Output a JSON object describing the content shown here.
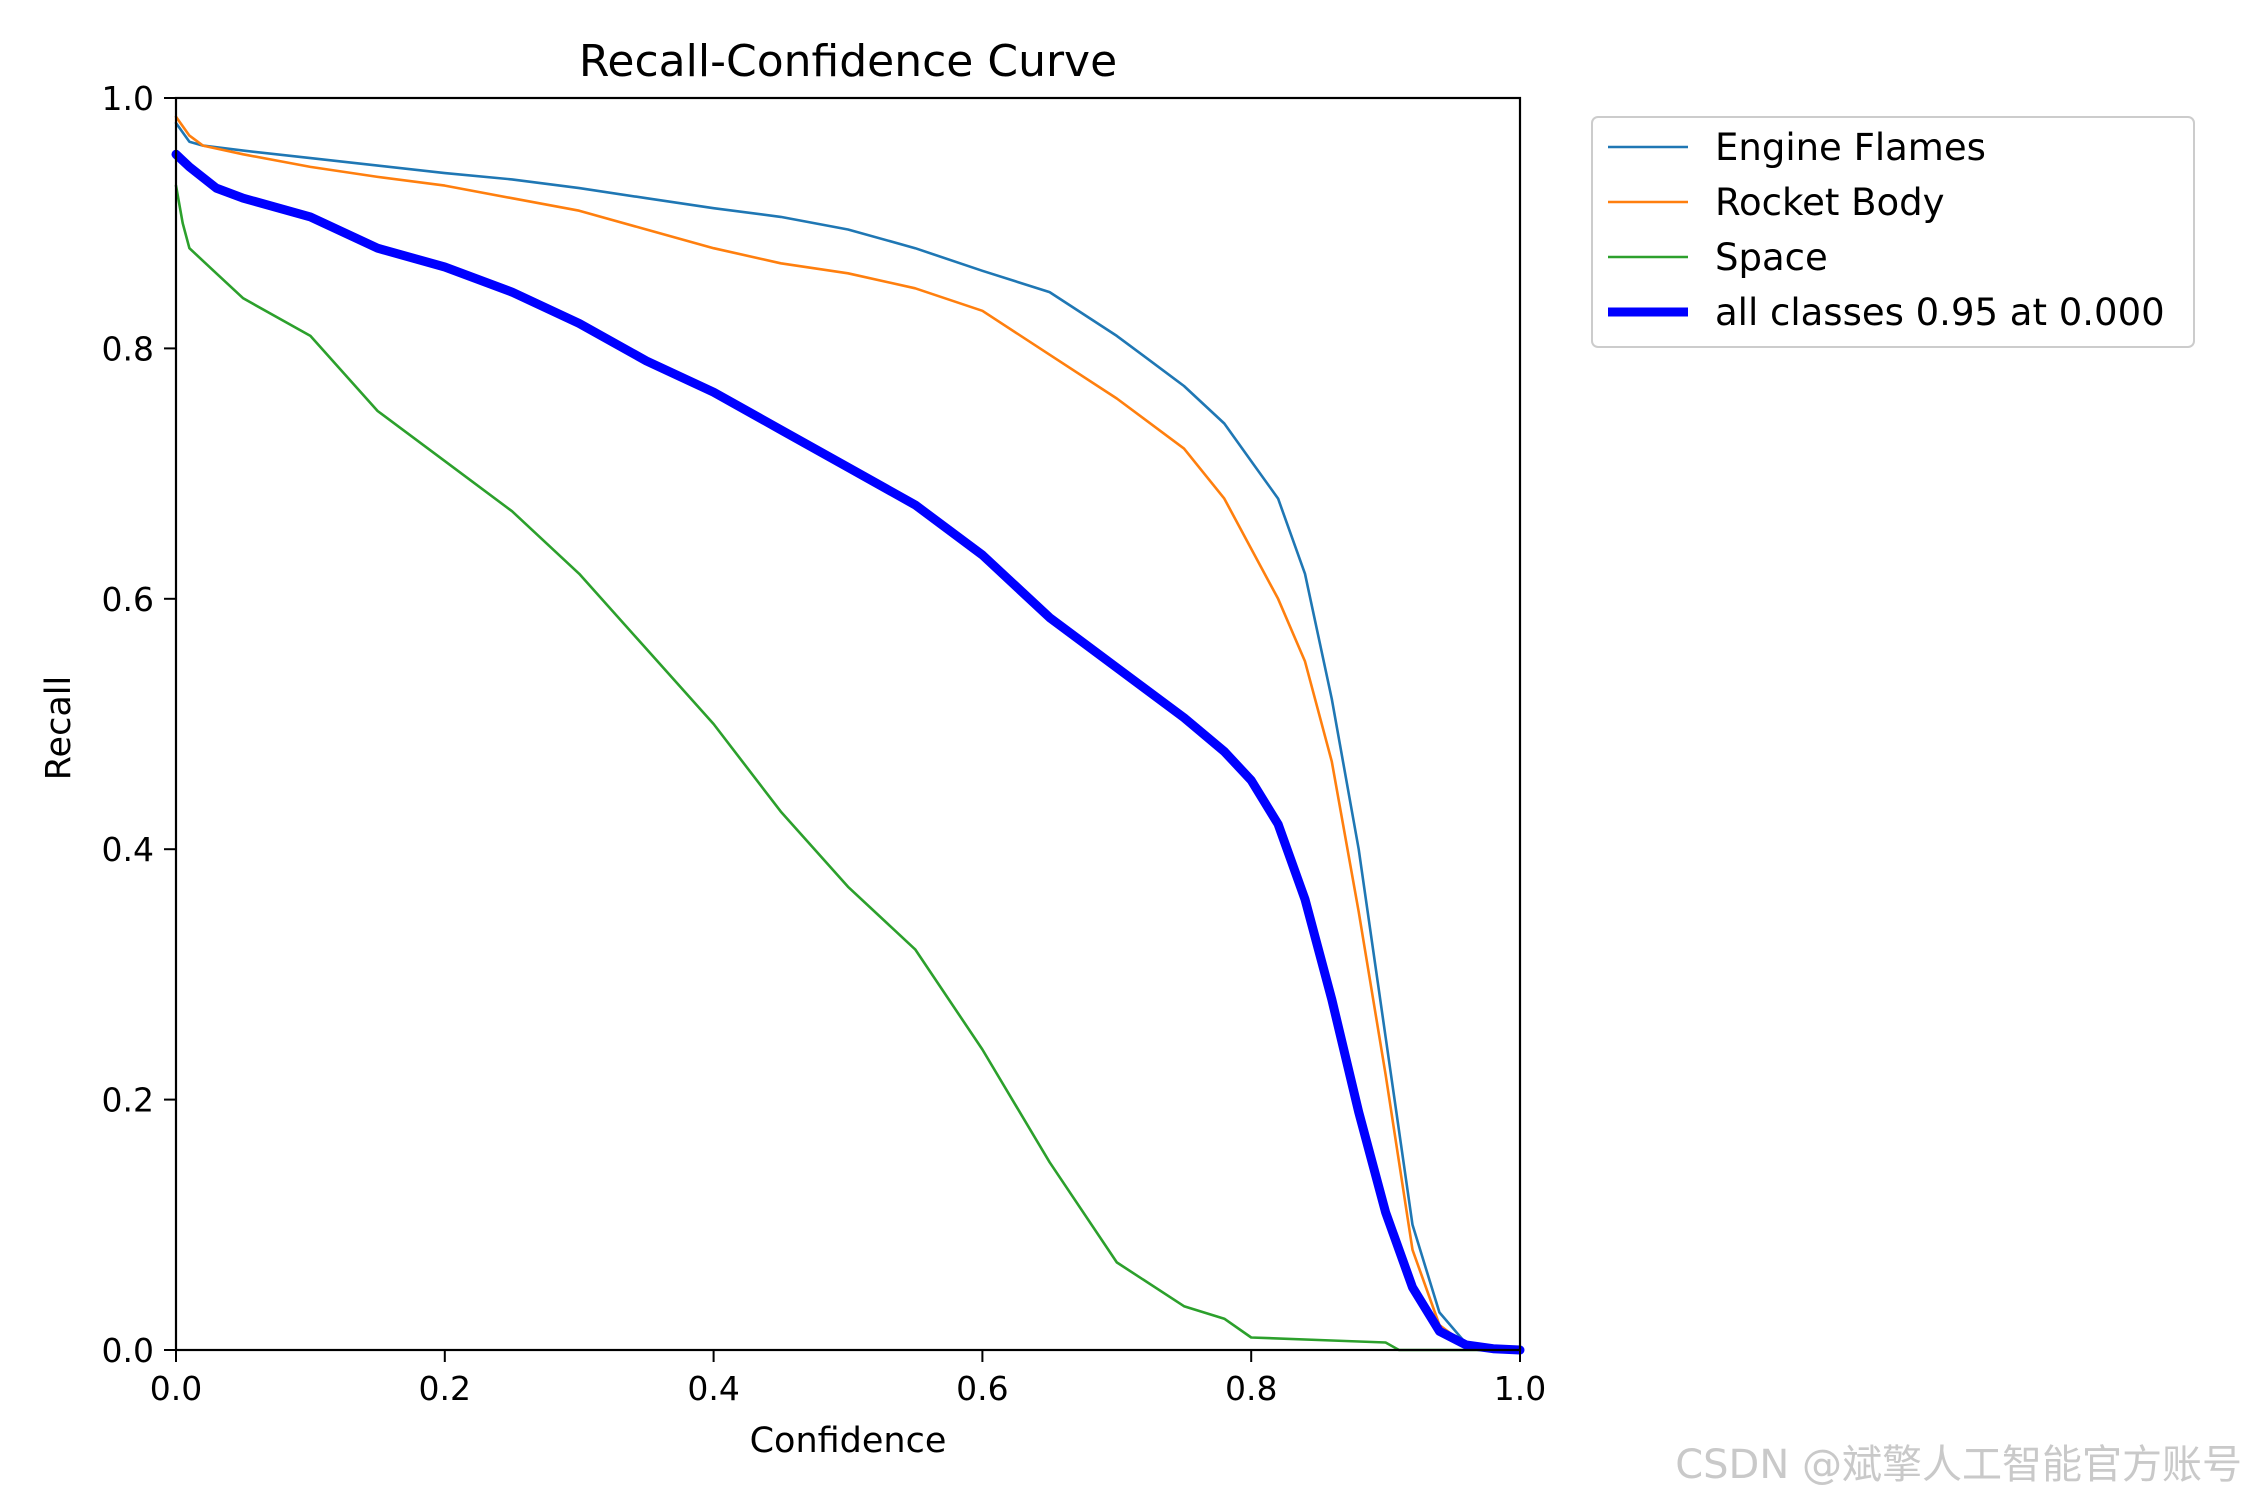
{
  "chart_data": {
    "type": "line",
    "title": "Recall-Confidence Curve",
    "xlabel": "Confidence",
    "ylabel": "Recall",
    "xlim": [
      0,
      1
    ],
    "ylim": [
      0,
      1
    ],
    "xticks": [
      "0.0",
      "0.2",
      "0.4",
      "0.6",
      "0.8",
      "1.0"
    ],
    "yticks": [
      "0.0",
      "0.2",
      "0.4",
      "0.6",
      "0.8",
      "1.0"
    ],
    "grid": false,
    "legend_position": "outside-top-right",
    "series": [
      {
        "name": "Engine Flames",
        "color": "#1f77b4",
        "x": [
          0,
          0.01,
          0.02,
          0.05,
          0.1,
          0.15,
          0.2,
          0.25,
          0.3,
          0.35,
          0.4,
          0.45,
          0.5,
          0.55,
          0.6,
          0.65,
          0.7,
          0.75,
          0.78,
          0.8,
          0.82,
          0.84,
          0.86,
          0.88,
          0.9,
          0.92,
          0.94,
          0.96,
          0.98,
          1.0
        ],
        "y": [
          0.98,
          0.965,
          0.962,
          0.958,
          0.952,
          0.946,
          0.94,
          0.935,
          0.928,
          0.92,
          0.912,
          0.905,
          0.895,
          0.88,
          0.862,
          0.845,
          0.81,
          0.77,
          0.74,
          0.71,
          0.68,
          0.62,
          0.52,
          0.4,
          0.25,
          0.1,
          0.03,
          0.005,
          0.002,
          0.0
        ]
      },
      {
        "name": "Rocket Body",
        "color": "#ff7f0e",
        "x": [
          0,
          0.01,
          0.02,
          0.05,
          0.1,
          0.15,
          0.2,
          0.25,
          0.3,
          0.35,
          0.4,
          0.45,
          0.5,
          0.55,
          0.6,
          0.65,
          0.7,
          0.75,
          0.78,
          0.8,
          0.82,
          0.84,
          0.86,
          0.88,
          0.9,
          0.92,
          0.94,
          0.96,
          0.98,
          1.0
        ],
        "y": [
          0.985,
          0.97,
          0.962,
          0.955,
          0.945,
          0.937,
          0.93,
          0.92,
          0.91,
          0.895,
          0.88,
          0.868,
          0.86,
          0.848,
          0.83,
          0.795,
          0.76,
          0.72,
          0.68,
          0.64,
          0.6,
          0.55,
          0.47,
          0.35,
          0.22,
          0.08,
          0.02,
          0.004,
          0.001,
          0.0
        ]
      },
      {
        "name": "Space",
        "color": "#2ca02c",
        "x": [
          0,
          0.005,
          0.01,
          0.02,
          0.03,
          0.05,
          0.1,
          0.15,
          0.2,
          0.25,
          0.3,
          0.35,
          0.4,
          0.45,
          0.5,
          0.55,
          0.6,
          0.65,
          0.7,
          0.75,
          0.78,
          0.8,
          0.85,
          0.9,
          0.91,
          0.95,
          1.0
        ],
        "y": [
          0.93,
          0.9,
          0.88,
          0.87,
          0.86,
          0.84,
          0.81,
          0.75,
          0.71,
          0.67,
          0.62,
          0.56,
          0.5,
          0.43,
          0.37,
          0.32,
          0.24,
          0.15,
          0.07,
          0.035,
          0.025,
          0.01,
          0.008,
          0.006,
          0.0,
          0.0,
          0.0
        ]
      },
      {
        "name": "all classes 0.95 at 0.000",
        "color": "#0000ff",
        "x": [
          0,
          0.01,
          0.03,
          0.05,
          0.1,
          0.15,
          0.2,
          0.25,
          0.3,
          0.35,
          0.4,
          0.45,
          0.5,
          0.55,
          0.6,
          0.65,
          0.7,
          0.75,
          0.78,
          0.8,
          0.82,
          0.84,
          0.86,
          0.88,
          0.9,
          0.92,
          0.94,
          0.96,
          0.98,
          1.0
        ],
        "y": [
          0.955,
          0.945,
          0.928,
          0.92,
          0.905,
          0.88,
          0.865,
          0.845,
          0.82,
          0.79,
          0.765,
          0.735,
          0.705,
          0.675,
          0.635,
          0.585,
          0.545,
          0.505,
          0.478,
          0.455,
          0.42,
          0.36,
          0.28,
          0.19,
          0.11,
          0.05,
          0.015,
          0.004,
          0.001,
          0.0
        ],
        "thick": true
      }
    ]
  },
  "watermark": "CSDN @斌擎人工智能官方账号"
}
